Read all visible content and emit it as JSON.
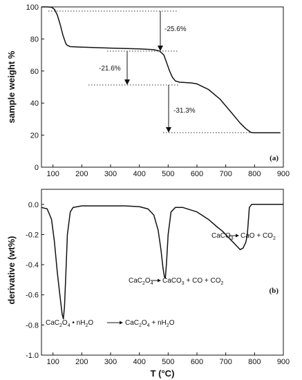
{
  "chart_data": [
    {
      "type": "line",
      "panel_label": "(a)",
      "ylabel": "sample weight %",
      "xlabel": "",
      "xlim": [
        60,
        900
      ],
      "ylim": [
        0,
        100
      ],
      "xticks": [
        100,
        200,
        300,
        400,
        500,
        600,
        700,
        800,
        900
      ],
      "yticks": [
        0,
        20,
        40,
        60,
        80,
        100
      ],
      "series": [
        {
          "x": [
            60,
            80,
            95,
            105,
            115,
            125,
            135,
            145,
            150,
            160,
            200,
            300,
            400,
            450,
            470,
            485,
            495,
            505,
            515,
            525,
            540,
            560,
            580,
            600,
            640,
            680,
            720,
            750,
            770,
            785,
            790,
            800,
            850,
            890
          ],
          "y": [
            100,
            100,
            99.8,
            98.5,
            95,
            89,
            82,
            77,
            76,
            75.2,
            74.9,
            74.3,
            73.8,
            73.3,
            72.5,
            70,
            65,
            60,
            56,
            53.8,
            53,
            52.8,
            52.6,
            52,
            48.5,
            42.5,
            34,
            27.5,
            24,
            22,
            21.6,
            21.5,
            21.5,
            21.5
          ]
        }
      ],
      "annotations": [
        {
          "text": "-25.6%"
        },
        {
          "text": "-21.6%"
        },
        {
          "text": "-31.3%"
        }
      ]
    },
    {
      "type": "line",
      "panel_label": "(b)",
      "ylabel": "derivative (wt%)",
      "xlabel": "T (°C)",
      "xlim": [
        60,
        900
      ],
      "ylim": [
        -1.0,
        0.1
      ],
      "xticks": [
        100,
        200,
        300,
        400,
        500,
        600,
        700,
        800,
        900
      ],
      "yticks": [
        -1.0,
        -0.8,
        -0.6,
        -0.4,
        -0.2,
        0.0
      ],
      "series": [
        {
          "x": [
            60,
            80,
            95,
            105,
            115,
            125,
            132,
            136,
            140,
            145,
            150,
            160,
            170,
            200,
            250,
            300,
            350,
            400,
            430,
            450,
            465,
            475,
            482,
            487,
            490,
            494,
            500,
            510,
            525,
            550,
            600,
            640,
            670,
            690,
            700,
            720,
            740,
            750,
            760,
            765,
            770,
            775,
            778,
            782,
            790,
            820,
            900
          ],
          "y": [
            -0.02,
            -0.03,
            -0.1,
            -0.25,
            -0.45,
            -0.62,
            -0.73,
            -0.76,
            -0.68,
            -0.45,
            -0.2,
            -0.05,
            -0.02,
            -0.01,
            -0.01,
            -0.01,
            -0.01,
            -0.015,
            -0.03,
            -0.07,
            -0.17,
            -0.3,
            -0.42,
            -0.48,
            -0.49,
            -0.4,
            -0.2,
            -0.05,
            -0.02,
            -0.02,
            -0.05,
            -0.1,
            -0.15,
            -0.18,
            -0.2,
            -0.24,
            -0.28,
            -0.3,
            -0.29,
            -0.27,
            -0.25,
            -0.2,
            -0.12,
            -0.02,
            0.0,
            0.0,
            0.0
          ]
        }
      ],
      "annotations": [
        {
          "text": "CaCO3 → CaO + CO2"
        },
        {
          "text": "CaC2O4 → CaCO3 + CO + CO2"
        },
        {
          "text": "CaC2O4 • nH2O → CaC2O4 + nH2O"
        }
      ]
    }
  ]
}
